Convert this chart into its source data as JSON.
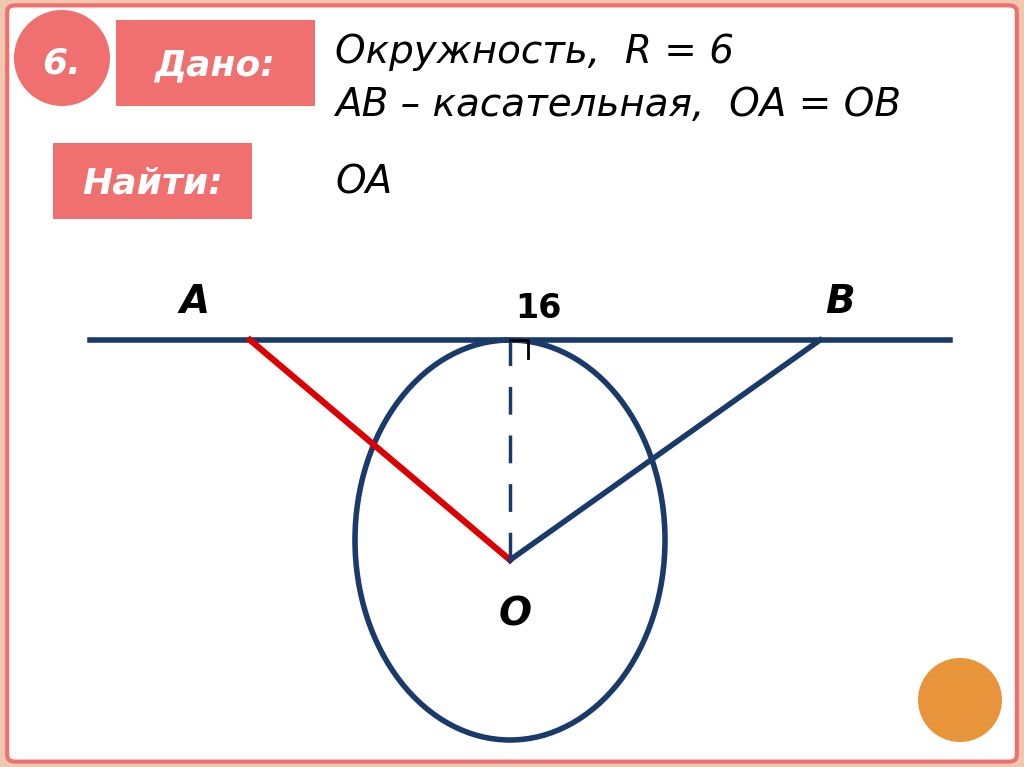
{
  "bg_color": "#f0c8b0",
  "panel_color": "#ffffff",
  "salmon_color": "#f07070",
  "orange_color": "#e8943a",
  "dark_blue": "#1a3a6b",
  "red_color": "#dd0000",
  "number_text": "6.",
  "dado_text": "Дано:",
  "najti_text": "Найти:",
  "line1_text": "Окружность,  R = 6",
  "line2_text": "AB – касательная,  OA = OB",
  "find_text": "OA",
  "label_16": "16",
  "label_A": "A",
  "label_B": "B",
  "label_O": "O",
  "fig_width": 10.24,
  "fig_height": 7.67,
  "dpi": 100
}
